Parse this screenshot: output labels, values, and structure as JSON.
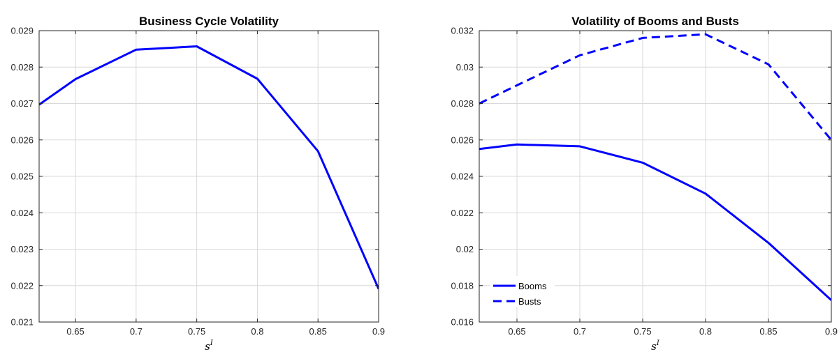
{
  "colors": {
    "line": "#0000ff",
    "grid": "#d9d9d9",
    "axis": "#262626"
  },
  "chart_data": [
    {
      "type": "line",
      "title": "Business Cycle Volatility",
      "xlabel": "s",
      "xlabel_sup": "I",
      "xlim": [
        0.62,
        0.9
      ],
      "ylim": [
        0.021,
        0.029
      ],
      "x_ticks": [
        "0.65",
        "0.7",
        "0.75",
        "0.8",
        "0.85",
        "0.9"
      ],
      "x_tick_values": [
        0.65,
        0.7,
        0.75,
        0.8,
        0.85,
        0.9
      ],
      "y_ticks": [
        "0.021",
        "0.022",
        "0.023",
        "0.024",
        "0.025",
        "0.026",
        "0.027",
        "0.028",
        "0.029"
      ],
      "y_tick_values": [
        0.021,
        0.022,
        0.023,
        0.024,
        0.025,
        0.026,
        0.027,
        0.028,
        0.029
      ],
      "grid": true,
      "series": [
        {
          "style": "solid",
          "x": [
            0.62,
            0.65,
            0.7,
            0.75,
            0.8,
            0.85,
            0.9
          ],
          "y": [
            0.02697,
            0.02767,
            0.02848,
            0.02857,
            0.02768,
            0.02569,
            0.02191
          ]
        }
      ]
    },
    {
      "type": "line",
      "title": "Volatility of Booms and Busts",
      "xlabel": "s",
      "xlabel_sup": "I",
      "xlim": [
        0.62,
        0.9
      ],
      "ylim": [
        0.016,
        0.032
      ],
      "x_ticks": [
        "0.65",
        "0.7",
        "0.75",
        "0.8",
        "0.85",
        "0.9"
      ],
      "x_tick_values": [
        0.65,
        0.7,
        0.75,
        0.8,
        0.85,
        0.9
      ],
      "y_ticks": [
        "0.016",
        "0.018",
        "0.02",
        "0.022",
        "0.024",
        "0.026",
        "0.028",
        "0.03",
        "0.032"
      ],
      "y_tick_values": [
        0.016,
        0.018,
        0.02,
        0.022,
        0.024,
        0.026,
        0.028,
        0.03,
        0.032
      ],
      "grid": true,
      "legend": "bottom-left",
      "series": [
        {
          "name": "Booms",
          "style": "solid",
          "x": [
            0.62,
            0.65,
            0.7,
            0.75,
            0.8,
            0.85,
            0.9
          ],
          "y": [
            0.0255,
            0.02575,
            0.02565,
            0.02475,
            0.02305,
            0.02035,
            0.0172
          ]
        },
        {
          "name": "Busts",
          "style": "dashed",
          "x": [
            0.62,
            0.65,
            0.7,
            0.75,
            0.8,
            0.85,
            0.9
          ],
          "y": [
            0.028,
            0.029,
            0.03065,
            0.0316,
            0.0318,
            0.03015,
            0.026
          ]
        }
      ]
    }
  ]
}
